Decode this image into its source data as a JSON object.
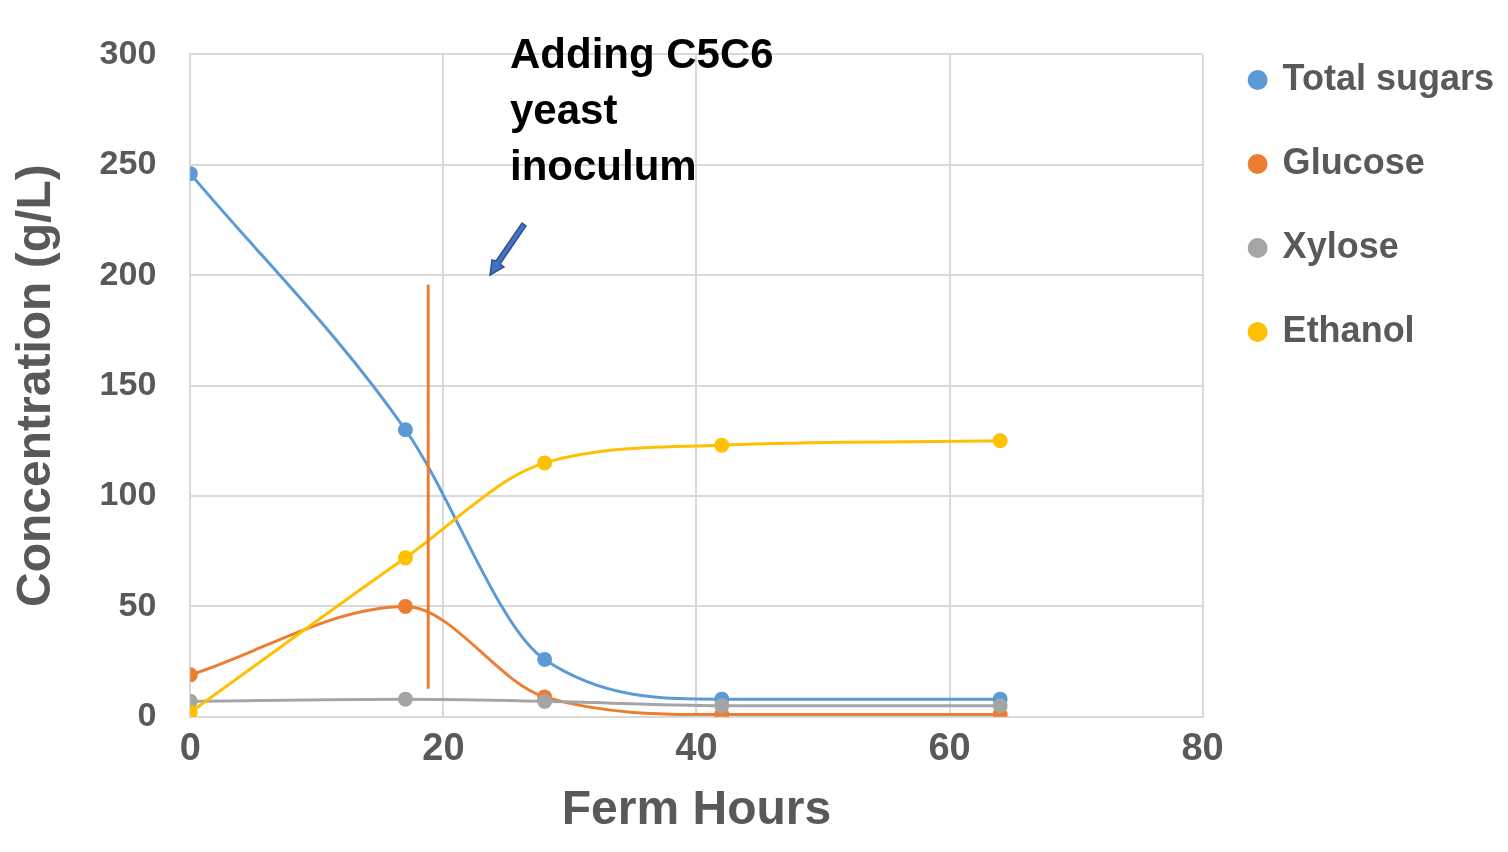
{
  "chart_data": {
    "type": "line",
    "xlabel": "Ferm Hours",
    "ylabel": "Concentration (g/L)",
    "x": [
      0,
      17,
      28,
      42,
      64
    ],
    "series": [
      {
        "name": "Total sugars",
        "color": "#5b9bd5",
        "values": [
          246,
          130,
          26,
          8,
          8
        ]
      },
      {
        "name": "Glucose",
        "color": "#ed7d31",
        "values": [
          19,
          50,
          9,
          1,
          1
        ]
      },
      {
        "name": "Xylose",
        "color": "#a5a5a5",
        "values": [
          7,
          8,
          7,
          5,
          5
        ]
      },
      {
        "name": "Ethanol",
        "color": "#ffc000",
        "values": [
          2,
          72,
          115,
          123,
          125
        ]
      }
    ],
    "xlim": [
      0,
      80
    ],
    "xticks": [
      0,
      20,
      40,
      60,
      80
    ],
    "ylim": [
      0,
      300
    ],
    "yticks": [
      0,
      50,
      100,
      150,
      200,
      250,
      300
    ],
    "grid": true,
    "legend": "top right",
    "marker": "circle",
    "line_style": "solid",
    "ref_lines": [
      {
        "axis": "x",
        "value": 18.8,
        "color": "#ed7d31"
      }
    ],
    "annotations": [
      "Adding C5C6 yeast inoculum"
    ]
  }
}
